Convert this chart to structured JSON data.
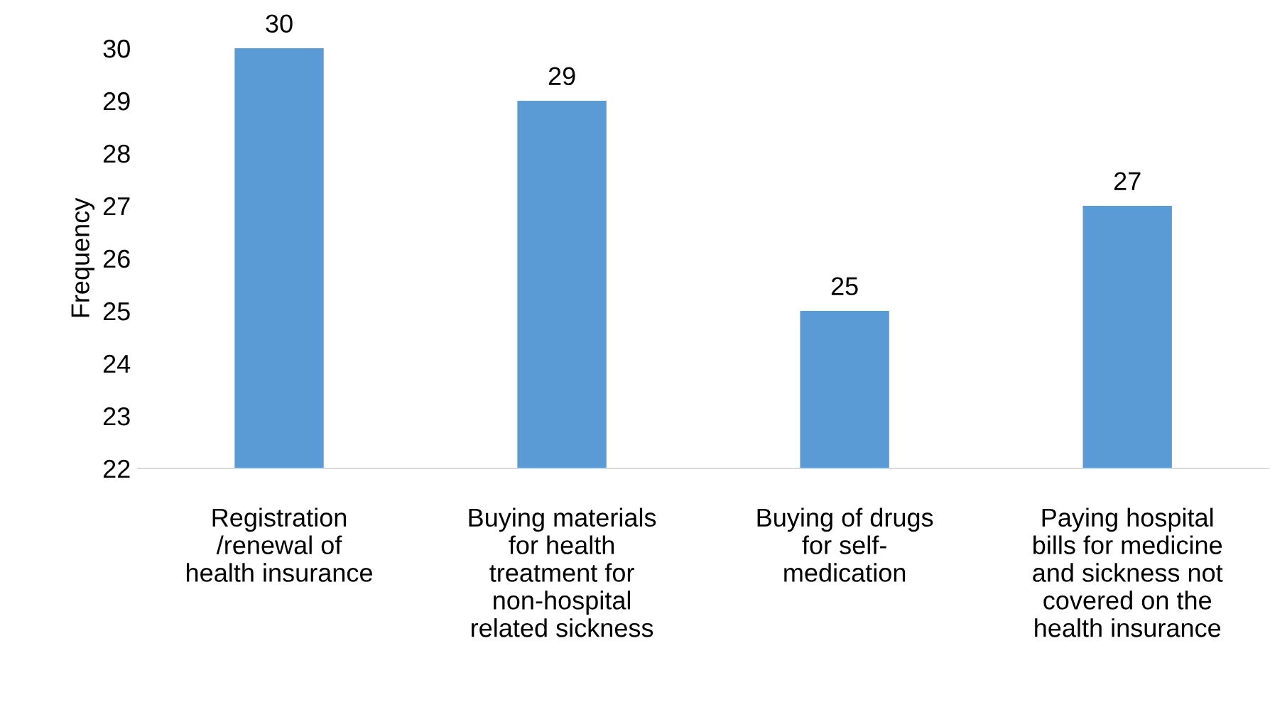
{
  "chart_data": {
    "type": "bar",
    "ylabel": "Frequency",
    "categories": [
      "Registration\n/renewal of\nhealth insurance",
      "Buying materials\nfor health\ntreatment for\nnon-hospital\nrelated sickness",
      "Buying of drugs\nfor self-\nmedication",
      "Paying hospital\nbills for medicine\nand sickness not\ncovered on the\nhealth insurance"
    ],
    "values": [
      30,
      29,
      25,
      27
    ],
    "color": "#5b9bd5",
    "ylim": [
      22,
      30
    ],
    "yticks": [
      22,
      23,
      24,
      25,
      26,
      27,
      28,
      29,
      30
    ],
    "data_labels": true,
    "grid": false,
    "legend": false
  }
}
